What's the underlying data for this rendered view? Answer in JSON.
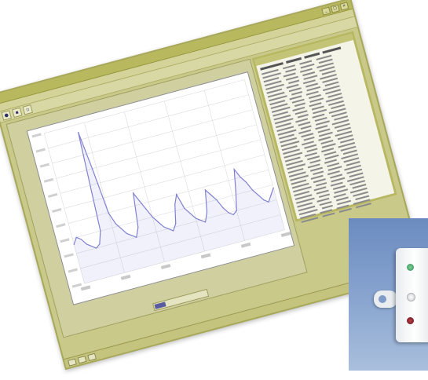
{
  "colors": {
    "window_frame": "#c9c98a",
    "plot_background": "#ffffff",
    "signal_line": "#8080d0",
    "signal_fill": "#8888e0",
    "photo_background": "#7f9cc8"
  },
  "icons": [
    "window-minimize-icon",
    "window-maximize-icon",
    "window-close-icon",
    "globe-icon",
    "save-icon",
    "print-icon",
    "device-led-icon"
  ],
  "chart_data": {
    "type": "line",
    "title": "",
    "xlabel": "",
    "ylabel": "",
    "grid": true,
    "ylim": [
      0,
      100
    ],
    "series": [
      {
        "x": [
          0,
          2,
          4,
          6,
          8,
          10,
          12,
          14,
          16,
          18,
          20,
          22,
          24,
          26,
          28,
          30,
          32,
          34,
          36,
          38,
          40,
          42,
          44,
          46,
          48,
          50,
          52,
          54,
          56,
          58,
          60,
          62,
          64,
          66,
          68,
          70,
          72,
          74,
          76,
          78,
          80,
          82,
          84,
          86,
          88,
          90,
          92,
          94,
          96,
          98,
          100
        ],
        "values": [
          26,
          30,
          28,
          24,
          22,
          20,
          22,
          30,
          95,
          70,
          40,
          32,
          28,
          24,
          22,
          20,
          26,
          48,
          42,
          36,
          30,
          26,
          22,
          20,
          18,
          22,
          34,
          40,
          30,
          26,
          22,
          20,
          18,
          24,
          38,
          34,
          30,
          24,
          20,
          18,
          20,
          32,
          46,
          40,
          36,
          30,
          26,
          22,
          20,
          24,
          28
        ]
      }
    ]
  }
}
